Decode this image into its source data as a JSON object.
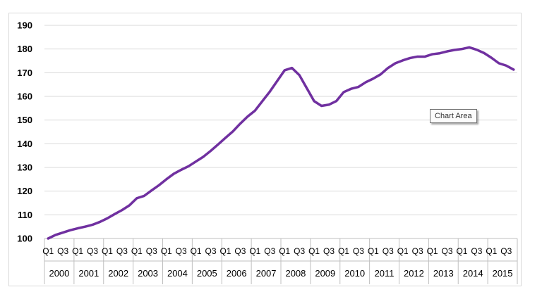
{
  "chart_data": {
    "type": "line",
    "title": "",
    "xlabel": "",
    "ylabel": "",
    "ylim": [
      100,
      190
    ],
    "yticks": [
      "100",
      "110",
      "120",
      "130",
      "140",
      "150",
      "160",
      "170",
      "180",
      "190"
    ],
    "grid": true,
    "line_color": "#7030a0",
    "quarter_labels": [
      "Q1",
      "Q3"
    ],
    "years": [
      "2000",
      "2001",
      "2002",
      "2003",
      "2004",
      "2005",
      "2006",
      "2007",
      "2008",
      "2009",
      "2010",
      "2011",
      "2012",
      "2013",
      "2014",
      "2015"
    ],
    "series": [
      {
        "values": [
          100,
          101.5,
          102.5,
          103.5,
          104.3,
          105,
          105.8,
          107,
          108.5,
          110.3,
          112,
          114,
          117,
          118,
          120.3,
          122.5,
          125,
          127.3,
          129,
          130.5,
          132.5,
          134.5,
          137,
          139.7,
          142.5,
          145.2,
          148.5,
          151.5,
          154,
          158,
          162,
          166.5,
          171,
          172,
          169,
          163.5,
          158,
          156,
          156.5,
          158,
          161.8,
          163.2,
          164,
          166,
          167.5,
          169.3,
          172,
          174,
          175.2,
          176.2,
          176.8,
          176.8,
          177.8,
          178.2,
          179,
          179.6,
          180,
          180.7,
          179.7,
          178.3,
          176.3,
          174,
          173,
          171.3
        ]
      }
    ]
  },
  "tooltip": {
    "text": "Chart Area"
  }
}
